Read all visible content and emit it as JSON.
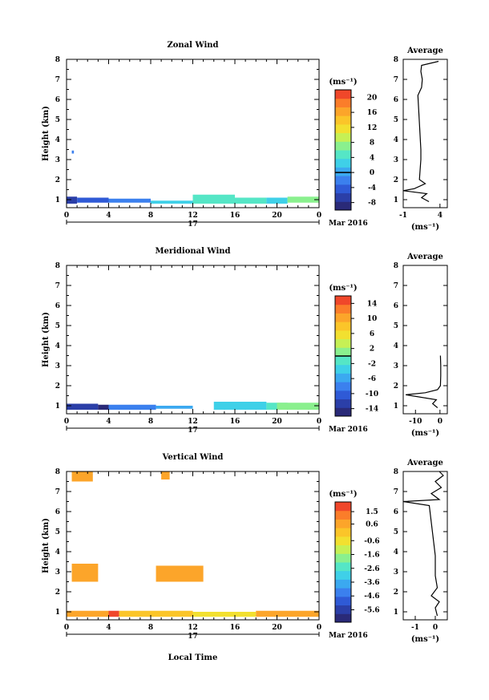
{
  "panels": [
    {
      "title": "Zonal Wind",
      "ylabel": "Height (km)",
      "unit_label": "(ms⁻¹)",
      "date_label": "Mar 2016",
      "day_label": "17",
      "colorbar_ticks": [
        "20",
        "16",
        "12",
        "8",
        "4",
        "0",
        "-4",
        "-8"
      ],
      "avg_title": "Average",
      "avg_xlabel": "(ms⁻¹)",
      "avg_xticks": [
        "-1",
        "4"
      ]
    },
    {
      "title": "Meridional Wind",
      "ylabel": "Height (km)",
      "unit_label": "(ms⁻¹)",
      "date_label": "Mar 2016",
      "day_label": "17",
      "colorbar_ticks": [
        "14",
        "10",
        "6",
        "2",
        "-2",
        "-6",
        "-10",
        "-14"
      ],
      "avg_title": "Average",
      "avg_xlabel": "(ms⁻¹)",
      "avg_xticks": [
        "-10",
        "0"
      ]
    },
    {
      "title": "Vertical Wind",
      "ylabel": "Height (km)",
      "unit_label": "(ms⁻¹)",
      "date_label": "Mar 2016",
      "day_label": "17",
      "colorbar_ticks": [
        "1.5",
        "0.6",
        "-0.6",
        "-1.6",
        "-2.6",
        "-3.6",
        "-4.6",
        "-5.6"
      ],
      "avg_title": "Average",
      "avg_xlabel": "(ms⁻¹)",
      "avg_xticks": [
        "-1",
        "0"
      ]
    }
  ],
  "xlabel_bottom": "Local Time",
  "chart_data": [
    {
      "type": "heatmap",
      "title": "Zonal Wind",
      "ylabel": "Height (km)",
      "xlabel": "",
      "xlim": [
        0,
        24
      ],
      "ylim": [
        0.6,
        8
      ],
      "x_ticks": [
        "0",
        "4",
        "8",
        "12",
        "16",
        "20",
        "0"
      ],
      "y_ticks": [
        "1",
        "2",
        "3",
        "4",
        "5",
        "6",
        "7",
        "8"
      ],
      "colorbar": {
        "label": "(ms⁻¹)",
        "range": [
          -10,
          22
        ],
        "ticks": [
          20,
          16,
          12,
          8,
          4,
          0,
          -4,
          -8
        ]
      },
      "patches": [
        {
          "x0": 0,
          "x1": 1,
          "y0": 0.8,
          "y1": 1.15,
          "value": -6
        },
        {
          "x0": 1,
          "x1": 4,
          "y0": 0.85,
          "y1": 1.1,
          "value": -5
        },
        {
          "x0": 4,
          "x1": 8,
          "y0": 0.85,
          "y1": 1.05,
          "value": -3
        },
        {
          "x0": 8,
          "x1": 12,
          "y0": 0.8,
          "y1": 0.95,
          "value": 3
        },
        {
          "x0": 12,
          "x1": 16,
          "y0": 0.8,
          "y1": 1.25,
          "value": 5
        },
        {
          "x0": 16,
          "x1": 19,
          "y0": 0.8,
          "y1": 1.1,
          "value": 5
        },
        {
          "x0": 19,
          "x1": 21,
          "y0": 0.8,
          "y1": 1.1,
          "value": 3
        },
        {
          "x0": 21,
          "x1": 24,
          "y0": 0.85,
          "y1": 1.15,
          "value": 8
        },
        {
          "x0": 0.5,
          "x1": 0.7,
          "y0": 3.3,
          "y1": 3.45,
          "value": -1
        }
      ],
      "average_profile": {
        "xlim": [
          -1,
          5
        ],
        "x_ticks": [
          -1,
          4
        ],
        "points": [
          [
            2.5,
            0.9
          ],
          [
            1.5,
            1.1
          ],
          [
            2.2,
            1.3
          ],
          [
            -1,
            1.45
          ],
          [
            0.5,
            1.55
          ],
          [
            2.0,
            1.8
          ],
          [
            1.2,
            2.0
          ],
          [
            1.3,
            2.5
          ],
          [
            1.4,
            3.0
          ],
          [
            1.4,
            3.5
          ],
          [
            1.0,
            6.2
          ],
          [
            1.5,
            6.6
          ],
          [
            1.6,
            7.0
          ],
          [
            1.4,
            7.4
          ],
          [
            1.5,
            7.7
          ],
          [
            3.8,
            7.9
          ]
        ]
      }
    },
    {
      "type": "heatmap",
      "title": "Meridional Wind",
      "ylabel": "Height (km)",
      "xlabel": "",
      "xlim": [
        0,
        24
      ],
      "ylim": [
        0.6,
        8
      ],
      "x_ticks": [
        "0",
        "4",
        "8",
        "12",
        "16",
        "20",
        "0"
      ],
      "y_ticks": [
        "1",
        "2",
        "3",
        "4",
        "5",
        "6",
        "7",
        "8"
      ],
      "colorbar": {
        "label": "(ms⁻¹)",
        "range": [
          -16,
          16
        ],
        "ticks": [
          14,
          10,
          6,
          2,
          -2,
          -6,
          -10,
          -14
        ]
      },
      "patches": [
        {
          "x0": 0,
          "x1": 3,
          "y0": 0.8,
          "y1": 1.1,
          "value": -13
        },
        {
          "x0": 3,
          "x1": 4,
          "y0": 0.8,
          "y1": 1.05,
          "value": -15
        },
        {
          "x0": 4,
          "x1": 8.5,
          "y0": 0.8,
          "y1": 1.05,
          "value": -8
        },
        {
          "x0": 8.5,
          "x1": 12,
          "y0": 0.85,
          "y1": 1.0,
          "value": -5
        },
        {
          "x0": 14,
          "x1": 19,
          "y0": 0.8,
          "y1": 1.2,
          "value": -3
        },
        {
          "x0": 19,
          "x1": 21,
          "y0": 0.8,
          "y1": 1.15,
          "value": -1
        },
        {
          "x0": 20,
          "x1": 24,
          "y0": 0.8,
          "y1": 1.15,
          "value": 2
        }
      ],
      "average_profile": {
        "xlim": [
          -15,
          3
        ],
        "x_ticks": [
          -10,
          0
        ],
        "points": [
          [
            -1,
            0.9
          ],
          [
            -3,
            1.1
          ],
          [
            -1.5,
            1.3
          ],
          [
            -14,
            1.55
          ],
          [
            -6,
            1.65
          ],
          [
            -1,
            1.8
          ],
          [
            0.2,
            2.0
          ],
          [
            0.3,
            2.5
          ],
          [
            0.3,
            3.0
          ],
          [
            0.2,
            3.5
          ]
        ]
      }
    },
    {
      "type": "heatmap",
      "title": "Vertical Wind",
      "ylabel": "Height (km)",
      "xlabel": "Local Time",
      "xlim": [
        0,
        24
      ],
      "ylim": [
        0.6,
        8
      ],
      "x_ticks": [
        "0",
        "4",
        "8",
        "12",
        "16",
        "20",
        "0"
      ],
      "y_ticks": [
        "1",
        "2",
        "3",
        "4",
        "5",
        "6",
        "7",
        "8"
      ],
      "colorbar": {
        "label": "(ms⁻¹)",
        "range": [
          -6.5,
          2.2
        ],
        "ticks": [
          1.5,
          0.6,
          -0.6,
          -1.6,
          -2.6,
          -3.6,
          -4.6,
          -5.6
        ]
      },
      "patches": [
        {
          "x0": 0,
          "x1": 4,
          "y0": 0.75,
          "y1": 1.05,
          "value": 0.8
        },
        {
          "x0": 4,
          "x1": 5,
          "y0": 0.75,
          "y1": 1.05,
          "value": 1.7
        },
        {
          "x0": 5,
          "x1": 12,
          "y0": 0.75,
          "y1": 1.05,
          "value": 0.2
        },
        {
          "x0": 12,
          "x1": 18,
          "y0": 0.75,
          "y1": 1.0,
          "value": -0.3
        },
        {
          "x0": 18,
          "x1": 24,
          "y0": 0.75,
          "y1": 1.05,
          "value": 0.6
        },
        {
          "x0": 0.5,
          "x1": 2.5,
          "y0": 7.5,
          "y1": 8.0,
          "value": 0.6
        },
        {
          "x0": 9,
          "x1": 9.8,
          "y0": 7.6,
          "y1": 8.0,
          "value": 0.6
        },
        {
          "x0": 0.5,
          "x1": 3,
          "y0": 2.5,
          "y1": 3.4,
          "value": 0.6
        },
        {
          "x0": 8.5,
          "x1": 13,
          "y0": 2.5,
          "y1": 3.3,
          "value": 0.6
        }
      ],
      "average_profile": {
        "xlim": [
          -1.6,
          0.6
        ],
        "x_ticks": [
          -1,
          0
        ],
        "points": [
          [
            0.1,
            0.8
          ],
          [
            0.0,
            1.2
          ],
          [
            0.2,
            1.5
          ],
          [
            -0.2,
            1.8
          ],
          [
            0.1,
            2.2
          ],
          [
            0.0,
            2.8
          ],
          [
            0.0,
            3.5
          ],
          [
            0.0,
            3.8
          ],
          [
            -0.3,
            6.3
          ],
          [
            -1.6,
            6.5
          ],
          [
            0.2,
            6.6
          ],
          [
            -0.2,
            6.9
          ],
          [
            0.3,
            7.2
          ],
          [
            0.0,
            7.5
          ],
          [
            0.4,
            7.8
          ],
          [
            0.2,
            8.0
          ]
        ]
      }
    }
  ]
}
